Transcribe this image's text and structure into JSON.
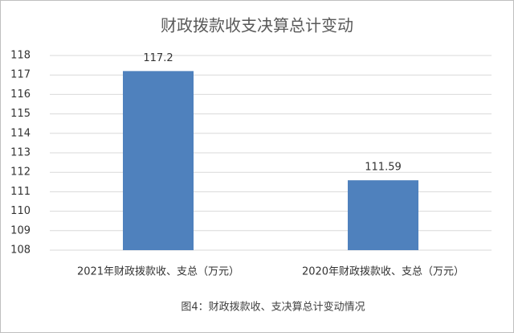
{
  "chart_data": {
    "type": "bar",
    "title": "财政拨款收支决算总计变动",
    "categories": [
      "2021年财政拨款收、支总（万元）",
      "2020年财政拨款收、支总（万元）"
    ],
    "values": [
      117.2,
      111.59
    ],
    "color": "#4f81bd",
    "ylim": [
      108,
      118
    ],
    "yticks": [
      108,
      109,
      110,
      111,
      112,
      113,
      114,
      115,
      116,
      117,
      118
    ],
    "grid": true,
    "caption": "图4：财政拨款收、支决算总计变动情况"
  }
}
